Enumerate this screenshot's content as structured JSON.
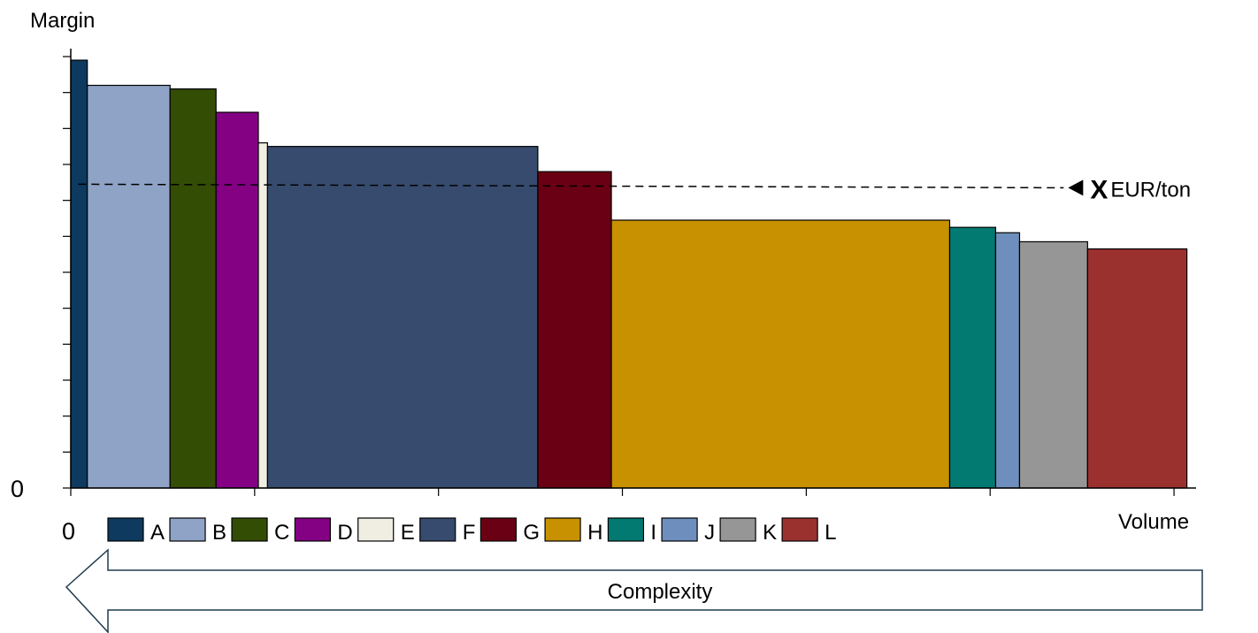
{
  "chart_data": {
    "type": "bar",
    "variable_width": true,
    "ylabel": "Margin",
    "xlabel": "Volume",
    "y_origin_label": "0",
    "x_origin_label": "0",
    "bars": [
      {
        "name": "A",
        "volume_start": 0.0,
        "volume_end": 0.45,
        "margin": 1.19,
        "color": "#0d3a5e"
      },
      {
        "name": "B",
        "volume_start": 0.45,
        "volume_end": 2.7,
        "margin": 1.12,
        "color": "#8fa3c6"
      },
      {
        "name": "C",
        "volume_start": 2.7,
        "volume_end": 3.95,
        "margin": 1.11,
        "color": "#334d05"
      },
      {
        "name": "D",
        "volume_start": 3.95,
        "volume_end": 5.1,
        "margin": 1.045,
        "color": "#840184"
      },
      {
        "name": "E",
        "volume_start": 5.1,
        "volume_end": 5.35,
        "margin": 0.96,
        "color": "#f0ede2"
      },
      {
        "name": "F",
        "volume_start": 5.35,
        "volume_end": 12.7,
        "margin": 0.95,
        "color": "#374b6e"
      },
      {
        "name": "G",
        "volume_start": 12.7,
        "volume_end": 14.7,
        "margin": 0.88,
        "color": "#6a0013"
      },
      {
        "name": "H",
        "volume_start": 14.7,
        "volume_end": 23.9,
        "margin": 0.745,
        "color": "#c79101"
      },
      {
        "name": "I",
        "volume_start": 23.9,
        "volume_end": 25.15,
        "margin": 0.725,
        "color": "#027a72"
      },
      {
        "name": "J",
        "volume_start": 25.15,
        "volume_end": 25.8,
        "margin": 0.71,
        "color": "#6e8fbd"
      },
      {
        "name": "K",
        "volume_start": 25.8,
        "volume_end": 27.65,
        "margin": 0.685,
        "color": "#969696"
      },
      {
        "name": "L",
        "volume_start": 27.65,
        "volume_end": 30.35,
        "margin": 0.665,
        "color": "#9b312f"
      }
    ],
    "ylim": [
      0,
      1.2
    ],
    "xlim": [
      0,
      30.6
    ],
    "y_ticks": [
      0,
      0.1,
      0.2,
      0.3,
      0.4,
      0.5,
      0.6,
      0.7,
      0.8,
      0.9,
      1.0,
      1.1,
      1.2
    ],
    "x_ticks": [
      0,
      5,
      10,
      15,
      20,
      25,
      30
    ],
    "grid": false,
    "legend_position": "bottom",
    "reference_line": {
      "label_bold": "X",
      "label_unit": "EUR/ton",
      "volume_start": 0.2,
      "volume_end": 27.0,
      "margin_start": 0.845,
      "margin_end": 0.835,
      "style": "dashed"
    },
    "arrow": {
      "label": "Complexity",
      "direction": "left"
    }
  }
}
